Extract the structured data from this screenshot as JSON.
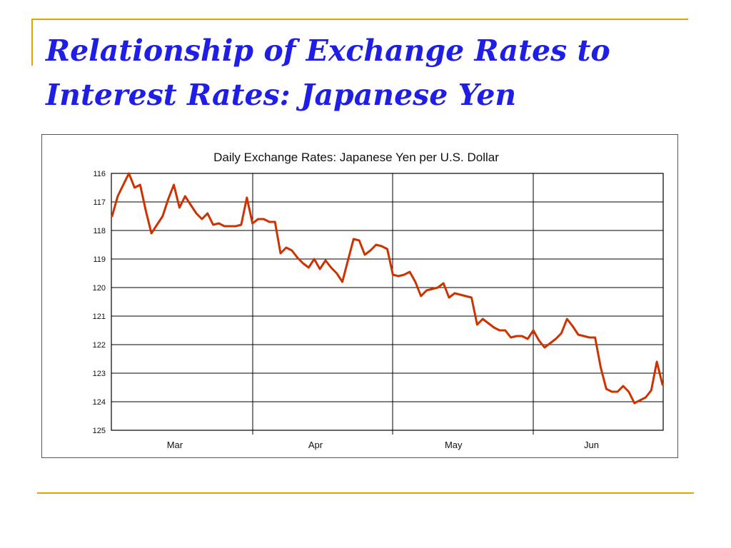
{
  "slide": {
    "title_line1": "Relationship of Exchange Rates to",
    "title_line2": "Interest Rates:  Japanese Yen",
    "accent_color": "#e8a200",
    "title_color": "#1e1ee6"
  },
  "chart_data": {
    "type": "line",
    "title": "Daily Exchange Rates: Japanese Yen per U.S. Dollar",
    "xlabel": "",
    "ylabel": "",
    "ylim": [
      125,
      116
    ],
    "y_inverted": true,
    "y_ticks": [
      116,
      117,
      118,
      119,
      120,
      121,
      122,
      123,
      124,
      125
    ],
    "month_labels": [
      "Mar",
      "Apr",
      "May",
      "Jun"
    ],
    "grid": true,
    "line_color": "#cc3300",
    "series": [
      {
        "values": [
          117.5,
          116.8,
          116.4,
          116.0,
          116.5,
          116.4,
          117.3,
          118.1,
          117.8,
          117.5,
          116.9,
          116.4,
          117.2,
          116.8,
          117.1,
          117.4,
          117.6,
          117.4,
          117.8,
          117.75,
          117.85,
          117.85,
          117.85,
          117.8,
          116.85,
          117.75,
          117.6,
          117.6,
          117.7,
          117.7,
          118.8,
          118.6,
          118.7,
          118.95,
          119.15,
          119.3,
          119.0,
          119.35,
          119.05,
          119.3,
          119.5,
          119.8,
          119.05,
          118.3,
          118.35,
          118.85,
          118.7,
          118.5,
          118.55,
          118.65,
          119.55,
          119.6,
          119.55,
          119.45,
          119.8,
          120.3,
          120.1,
          120.05,
          120.0,
          119.85,
          120.35,
          120.2,
          120.25,
          120.3,
          120.35,
          121.3,
          121.1,
          121.25,
          121.4,
          121.5,
          121.5,
          121.75,
          121.7,
          121.7,
          121.8,
          121.5,
          121.85,
          122.1,
          121.95,
          121.8,
          121.6,
          121.1,
          121.35,
          121.65,
          121.7,
          121.75,
          121.75,
          122.8,
          123.55,
          123.65,
          123.65,
          123.45,
          123.65,
          124.05,
          123.95,
          123.85,
          123.6,
          122.6,
          123.4
        ]
      }
    ]
  }
}
